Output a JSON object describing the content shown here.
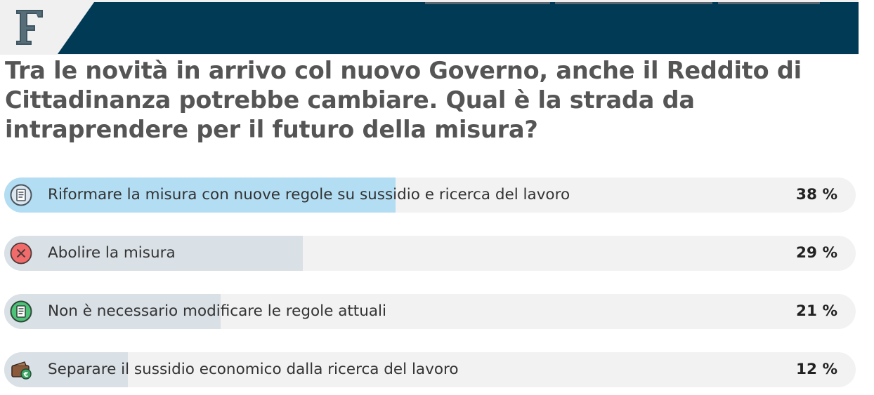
{
  "brand": {
    "logo_letter": "F"
  },
  "poll": {
    "question": "Tra le novità in arrivo col nuovo Governo, anche il Reddito di Cittadinanza potrebbe cambiare. Qual è la strada da intraprendere per il futuro della misura?",
    "options": [
      {
        "label": "Riformare la misura con nuove regole su sussidio e ricerca del lavoro",
        "percent_label": "38 %",
        "percent": 38,
        "icon": "document-icon",
        "fill_color": "#b3ddf2"
      },
      {
        "label": "Abolire la misura",
        "percent_label": "29 %",
        "percent": 29,
        "icon": "x-circle-icon",
        "fill_color": "#d9e0e6"
      },
      {
        "label": "Non è necessario modificare le regole attuali",
        "percent_label": "21 %",
        "percent": 21,
        "icon": "document-icon",
        "fill_color": "#d9e0e6"
      },
      {
        "label": "Separare il sussidio economico dalla ricerca del lavoro",
        "percent_label": "12 %",
        "percent": 12,
        "icon": "wallet-euro-icon",
        "fill_color": "#d9e0e6"
      }
    ]
  },
  "colors": {
    "header_band": "#013a55",
    "title_text": "#555555",
    "track": "#f2f2f2"
  }
}
